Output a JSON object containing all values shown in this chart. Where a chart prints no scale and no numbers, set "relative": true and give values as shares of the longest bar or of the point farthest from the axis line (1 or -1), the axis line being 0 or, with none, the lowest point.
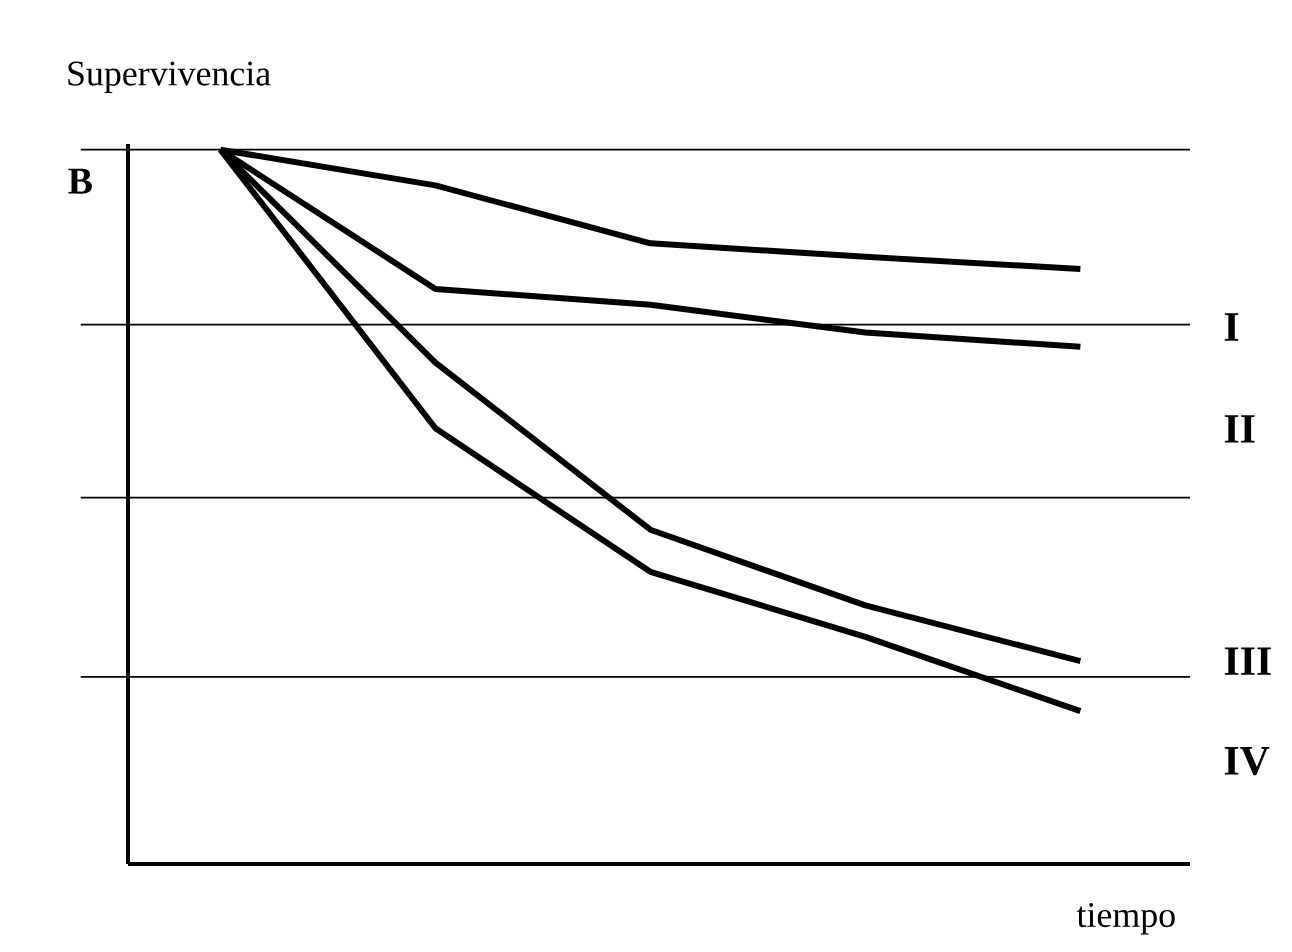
{
  "chart_data": {
    "type": "line",
    "relative": true,
    "xlabel": "tiempo",
    "ylabel": "Supervivencia",
    "categories": [
      null,
      null,
      null,
      null,
      null
    ],
    "series": [
      {
        "name": "I",
        "color": "#000000",
        "values": [
          1,
          0.95,
          0.869,
          0.85,
          0.833
        ]
      },
      {
        "name": "II",
        "color": "#000000",
        "values": [
          1,
          0.805,
          0.783,
          0.744,
          0.724
        ]
      },
      {
        "name": "III",
        "color": "#000000",
        "values": [
          1,
          0.702,
          0.468,
          0.362,
          0.284
        ]
      },
      {
        "name": "IV",
        "color": "#000000",
        "values": [
          1,
          0.61,
          0.409,
          0.318,
          0.214
        ]
      }
    ],
    "ref_lines": [
      {
        "axis": "y",
        "value": 1,
        "label": "B",
        "color": "#000000"
      },
      {
        "axis": "y",
        "value": 0.755,
        "color": "#000000"
      },
      {
        "axis": "y",
        "value": 0.513,
        "color": "#000000"
      },
      {
        "axis": "y",
        "value": 0.262,
        "color": "#000000"
      }
    ]
  }
}
